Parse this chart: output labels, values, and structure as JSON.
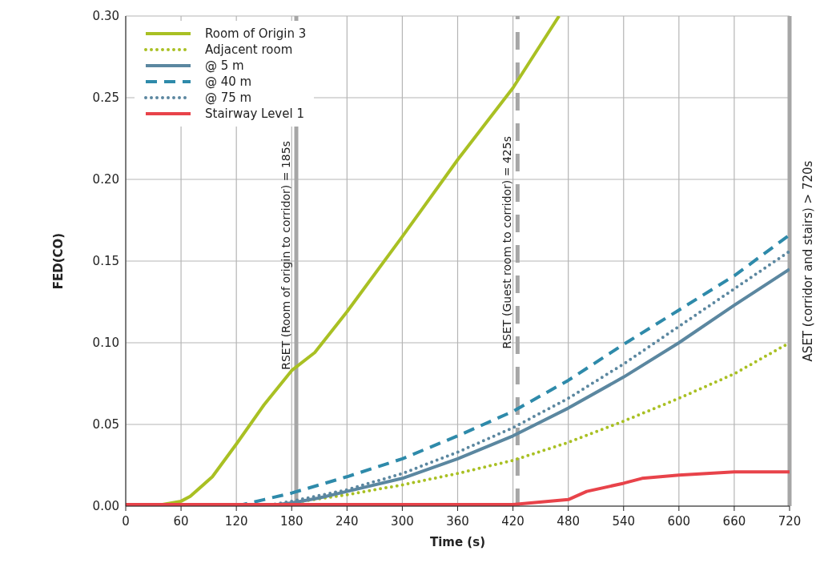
{
  "chart_data": {
    "type": "line",
    "xlabel": "Time (s)",
    "ylabel": "FED(CO)",
    "xlim": [
      0,
      720
    ],
    "xticks": [
      0,
      60,
      120,
      180,
      240,
      300,
      360,
      420,
      480,
      540,
      600,
      660,
      720
    ],
    "ylim": [
      0,
      0.3
    ],
    "yticks": [
      {
        "value": 0,
        "label": "0.00"
      },
      {
        "value": 0.05,
        "label": "0.05"
      },
      {
        "value": 0.1,
        "label": "0.10"
      },
      {
        "value": 0.15,
        "label": "0.15"
      },
      {
        "value": 0.2,
        "label": "0.20"
      },
      {
        "value": 0.25,
        "label": "0.25"
      },
      {
        "value": 0.3,
        "label": "0.30"
      }
    ],
    "grid": true,
    "legend": "top left",
    "marker": "none",
    "series": [
      {
        "name": "Room of Origin 3",
        "color": "#a9c023",
        "line_style": "solid",
        "x": [
          0,
          40,
          60,
          70,
          94,
          120,
          150,
          180,
          205,
          240,
          300,
          360,
          420,
          470
        ],
        "values": [
          0.001,
          0.001,
          0.003,
          0.006,
          0.018,
          0.038,
          0.062,
          0.083,
          0.094,
          0.119,
          0.165,
          0.212,
          0.256,
          0.3
        ]
      },
      {
        "name": "Adjacent room",
        "color": "#a9c023",
        "line_style": "dotted",
        "x": [
          150,
          180,
          240,
          300,
          360,
          420,
          480,
          540,
          600,
          660,
          720
        ],
        "values": [
          0,
          0.002,
          0.007,
          0.013,
          0.02,
          0.028,
          0.039,
          0.052,
          0.066,
          0.081,
          0.1
        ]
      },
      {
        "name": "@ 5 m",
        "color": "#5b87a0",
        "line_style": "solid",
        "x": [
          150,
          180,
          210,
          240,
          300,
          360,
          420,
          480,
          540,
          600,
          660,
          720
        ],
        "values": [
          0,
          0.002,
          0.005,
          0.009,
          0.017,
          0.029,
          0.043,
          0.06,
          0.079,
          0.1,
          0.123,
          0.145
        ]
      },
      {
        "name": "@ 40 m",
        "color": "#2e8aaa",
        "line_style": "dashed",
        "x": [
          120,
          150,
          180,
          240,
          300,
          360,
          420,
          480,
          540,
          600,
          660,
          720
        ],
        "values": [
          0,
          0.004,
          0.008,
          0.018,
          0.029,
          0.043,
          0.058,
          0.077,
          0.099,
          0.12,
          0.141,
          0.166
        ]
      },
      {
        "name": "@ 75 m",
        "color": "#5b87a0",
        "line_style": "dotted",
        "x": [
          150,
          180,
          240,
          300,
          360,
          420,
          480,
          540,
          600,
          660,
          720
        ],
        "values": [
          0,
          0.003,
          0.01,
          0.02,
          0.033,
          0.048,
          0.066,
          0.087,
          0.11,
          0.133,
          0.156
        ]
      },
      {
        "name": "Stairway Level 1",
        "color": "#e8434a",
        "line_style": "solid",
        "x": [
          0,
          420,
          480,
          500,
          540,
          560,
          600,
          630,
          660,
          720
        ],
        "values": [
          0.001,
          0.001,
          0.004,
          0.009,
          0.014,
          0.017,
          0.019,
          0.02,
          0.021,
          0.021
        ]
      }
    ],
    "ref_lines": [
      {
        "axis": "x",
        "value": 185,
        "label": "RSET (Room of origin to corridor) = 185s",
        "color": "#a6a6a6",
        "line_style": "solid"
      },
      {
        "axis": "x",
        "value": 425,
        "label": "RSET (Guest room to corridor) = 425s",
        "color": "#a6a6a6",
        "line_style": "dashed"
      },
      {
        "axis": "x",
        "value": 720,
        "label": "ASET (corridor and stairs) > 720s",
        "color": "#a6a6a6",
        "line_style": "solid"
      }
    ]
  }
}
